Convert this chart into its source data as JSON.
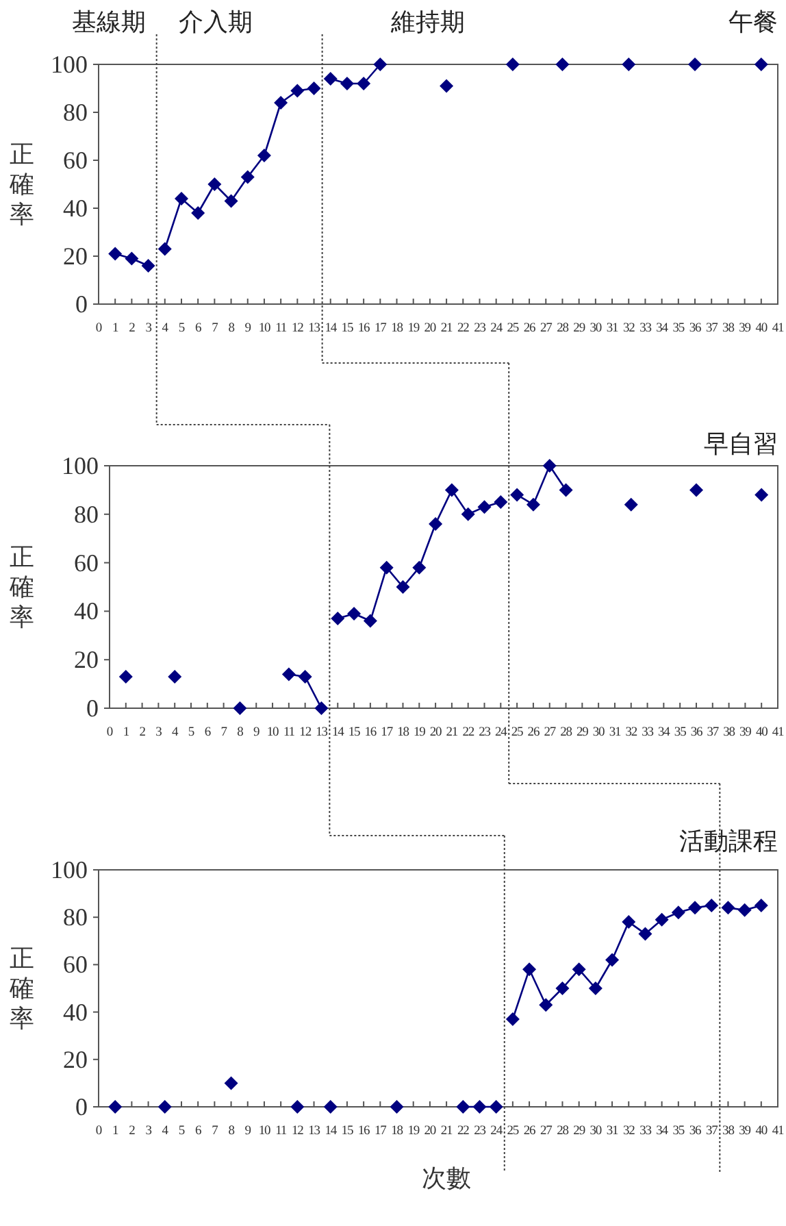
{
  "chart_data": [
    {
      "type": "line",
      "title": "午餐",
      "ylabel": "正確率",
      "annotations": [
        "基線期",
        "介入期",
        "維持期"
      ],
      "xlim": [
        0,
        41
      ],
      "xticks": [
        0,
        1,
        2,
        3,
        4,
        5,
        6,
        7,
        8,
        9,
        10,
        11,
        12,
        13,
        14,
        15,
        16,
        17,
        18,
        19,
        20,
        21,
        22,
        23,
        24,
        25,
        26,
        27,
        28,
        29,
        30,
        31,
        32,
        33,
        34,
        35,
        36,
        37,
        38,
        39,
        40,
        41
      ],
      "ylim": [
        0,
        100
      ],
      "yticks": [
        0,
        20,
        40,
        60,
        80,
        100
      ],
      "marker": "diamond",
      "ref_lines": [
        {
          "axis": "x",
          "value": 3.5,
          "line_style": "dotted"
        },
        {
          "axis": "x",
          "value": 13.5,
          "line_style": "dotted"
        }
      ],
      "series": [
        {
          "color": "#000080",
          "x": [
            1,
            2,
            3
          ],
          "values": [
            21,
            19,
            16
          ]
        },
        {
          "color": "#000080",
          "x": [
            4,
            5,
            6,
            7,
            8,
            9,
            10,
            11,
            12,
            13
          ],
          "values": [
            23,
            44,
            38,
            50,
            43,
            53,
            62,
            84,
            89,
            90
          ]
        },
        {
          "color": "#000080",
          "x": [
            14,
            15,
            16,
            17,
            18,
            19,
            20,
            21,
            22,
            23,
            24,
            25,
            26,
            27,
            28,
            29,
            30,
            31,
            32,
            33,
            34,
            35,
            36,
            37,
            38,
            39,
            40
          ],
          "values": [
            94,
            92,
            92,
            100,
            null,
            null,
            null,
            91,
            null,
            null,
            null,
            100,
            null,
            null,
            100,
            null,
            null,
            null,
            100,
            null,
            null,
            null,
            100,
            null,
            null,
            null,
            100
          ]
        }
      ]
    },
    {
      "type": "line",
      "title": "早自習",
      "ylabel": "正確率",
      "xlim": [
        0,
        41
      ],
      "xticks": [
        0,
        1,
        2,
        3,
        4,
        5,
        6,
        7,
        8,
        9,
        10,
        11,
        12,
        13,
        14,
        15,
        16,
        17,
        18,
        19,
        20,
        21,
        22,
        23,
        24,
        25,
        26,
        27,
        28,
        29,
        30,
        31,
        32,
        33,
        34,
        35,
        36,
        37,
        38,
        39,
        40,
        41
      ],
      "ylim": [
        0,
        100
      ],
      "yticks": [
        0,
        20,
        40,
        60,
        80,
        100
      ],
      "marker": "diamond",
      "ref_lines": [
        {
          "axis": "x",
          "value": 13.5,
          "line_style": "dotted"
        },
        {
          "axis": "x",
          "value": 24.5,
          "line_style": "dotted"
        }
      ],
      "series": [
        {
          "color": "#000080",
          "x": [
            1,
            2,
            3,
            4,
            5,
            6,
            7,
            8,
            9,
            10,
            11,
            12,
            13
          ],
          "values": [
            13,
            null,
            null,
            13,
            null,
            null,
            null,
            0,
            null,
            null,
            14,
            13,
            0
          ]
        },
        {
          "color": "#000080",
          "x": [
            14,
            15,
            16,
            17,
            18,
            19,
            20,
            21,
            22,
            23,
            24
          ],
          "values": [
            37,
            39,
            36,
            58,
            50,
            58,
            76,
            90,
            80,
            83,
            85
          ]
        },
        {
          "color": "#000080",
          "x": [
            25,
            26,
            27,
            28,
            29,
            30,
            31,
            32,
            33,
            34,
            35,
            36,
            37,
            38,
            39,
            40
          ],
          "values": [
            88,
            84,
            100,
            90,
            null,
            null,
            null,
            84,
            null,
            null,
            null,
            90,
            null,
            null,
            null,
            88
          ]
        }
      ]
    },
    {
      "type": "line",
      "title": "活動課程",
      "ylabel": "正確率",
      "xlabel": "次數",
      "xlim": [
        0,
        41
      ],
      "xticks": [
        0,
        1,
        2,
        3,
        4,
        5,
        6,
        7,
        8,
        9,
        10,
        11,
        12,
        13,
        14,
        15,
        16,
        17,
        18,
        19,
        20,
        21,
        22,
        23,
        24,
        25,
        26,
        27,
        28,
        29,
        30,
        31,
        32,
        33,
        34,
        35,
        36,
        37,
        38,
        39,
        40,
        41
      ],
      "ylim": [
        0,
        100
      ],
      "yticks": [
        0,
        20,
        40,
        60,
        80,
        100
      ],
      "marker": "diamond",
      "ref_lines": [
        {
          "axis": "x",
          "value": 24.5,
          "line_style": "dotted"
        },
        {
          "axis": "x",
          "value": 37.5,
          "line_style": "dotted"
        }
      ],
      "series": [
        {
          "color": "#000080",
          "x": [
            1,
            2,
            3,
            4,
            5,
            6,
            7,
            8,
            9,
            10,
            11,
            12,
            13,
            14,
            15,
            16,
            17,
            18,
            19,
            20,
            21,
            22,
            23,
            24
          ],
          "values": [
            0,
            null,
            null,
            0,
            null,
            null,
            null,
            10,
            null,
            null,
            null,
            0,
            null,
            0,
            null,
            null,
            null,
            0,
            null,
            null,
            null,
            0,
            0,
            0
          ]
        },
        {
          "color": "#000080",
          "x": [
            25,
            26,
            27,
            28,
            29,
            30,
            31,
            32,
            33,
            34,
            35,
            36,
            37
          ],
          "values": [
            37,
            58,
            43,
            50,
            58,
            50,
            62,
            78,
            73,
            79,
            82,
            84,
            85
          ]
        },
        {
          "color": "#000080",
          "x": [
            38,
            39,
            40
          ],
          "values": [
            84,
            83,
            85
          ]
        }
      ]
    }
  ]
}
